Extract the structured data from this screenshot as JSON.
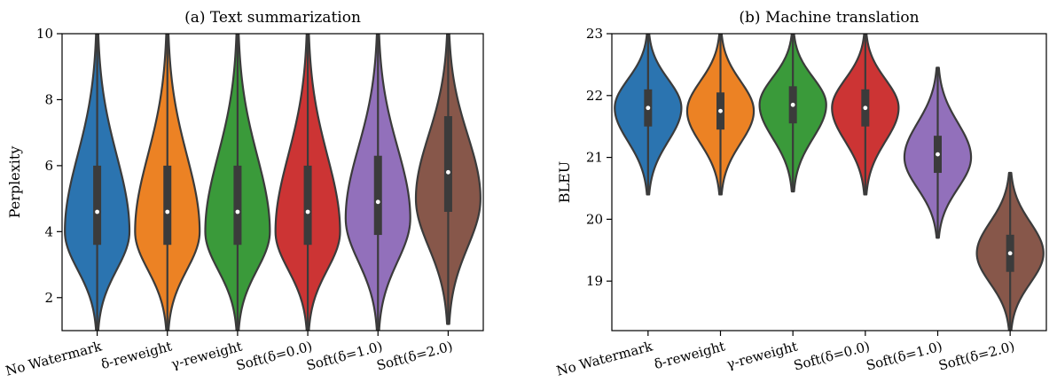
{
  "colors": {
    "blue": "#2b74b0",
    "orange": "#ec8224",
    "green": "#3a9a3a",
    "red": "#cc3434",
    "purple": "#9270bb",
    "brown": "#87574a",
    "outline": "#3b3b3b"
  },
  "chart_data": [
    {
      "type": "violin",
      "title": "(a) Text summarization",
      "xlabel": "",
      "ylabel": "Perplexity",
      "ylim": [
        1,
        10
      ],
      "yticks": [
        2,
        4,
        6,
        8,
        10
      ],
      "categories": [
        "No Watermark",
        "δ-reweight",
        "γ-reweight",
        "Soft(δ=0.0)",
        "Soft(δ=1.0)",
        "Soft(δ=2.0)"
      ],
      "series": [
        {
          "median": 4.6,
          "q1": 3.6,
          "q3": 6.0,
          "min": 1.0,
          "max": 10.0,
          "peak": 4.0,
          "color": "blue"
        },
        {
          "median": 4.6,
          "q1": 3.6,
          "q3": 6.0,
          "min": 1.0,
          "max": 10.0,
          "peak": 4.0,
          "color": "orange"
        },
        {
          "median": 4.6,
          "q1": 3.6,
          "q3": 6.0,
          "min": 1.0,
          "max": 10.0,
          "peak": 4.0,
          "color": "green"
        },
        {
          "median": 4.6,
          "q1": 3.6,
          "q3": 6.0,
          "min": 1.0,
          "max": 10.0,
          "peak": 4.0,
          "color": "red"
        },
        {
          "median": 4.9,
          "q1": 3.9,
          "q3": 6.3,
          "min": 1.0,
          "max": 10.0,
          "peak": 4.4,
          "color": "purple"
        },
        {
          "median": 5.8,
          "q1": 4.6,
          "q3": 7.5,
          "min": 1.2,
          "max": 10.0,
          "peak": 5.0,
          "color": "brown"
        }
      ]
    },
    {
      "type": "violin",
      "title": "(b) Machine translation",
      "xlabel": "",
      "ylabel": "BLEU",
      "ylim": [
        18.2,
        23.0
      ],
      "yticks": [
        19,
        20,
        21,
        22,
        23
      ],
      "categories": [
        "No Watermark",
        "δ-reweight",
        "γ-reweight",
        "Soft(δ=0.0)",
        "Soft(δ=1.0)",
        "Soft(δ=2.0)"
      ],
      "series": [
        {
          "median": 21.8,
          "q1": 21.5,
          "q3": 22.1,
          "min": 20.4,
          "max": 23.0,
          "peak": 21.8,
          "color": "blue"
        },
        {
          "median": 21.75,
          "q1": 21.45,
          "q3": 22.05,
          "min": 20.4,
          "max": 23.0,
          "peak": 21.75,
          "color": "orange"
        },
        {
          "median": 21.85,
          "q1": 21.55,
          "q3": 22.15,
          "min": 20.45,
          "max": 23.0,
          "peak": 21.85,
          "color": "green"
        },
        {
          "median": 21.8,
          "q1": 21.5,
          "q3": 22.1,
          "min": 20.4,
          "max": 23.0,
          "peak": 21.8,
          "color": "red"
        },
        {
          "median": 21.05,
          "q1": 20.75,
          "q3": 21.35,
          "min": 19.7,
          "max": 22.45,
          "peak": 21.0,
          "color": "purple"
        },
        {
          "median": 19.45,
          "q1": 19.15,
          "q3": 19.75,
          "min": 18.2,
          "max": 20.75,
          "peak": 19.45,
          "color": "brown"
        }
      ]
    }
  ]
}
